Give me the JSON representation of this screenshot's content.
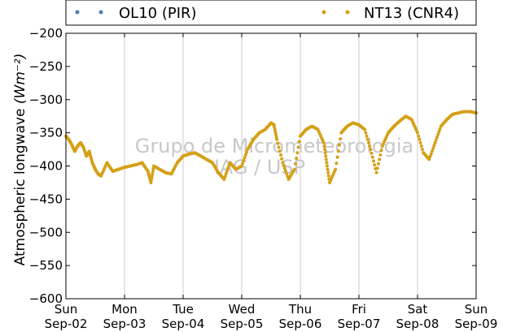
{
  "chart_data": {
    "type": "scatter",
    "ylabel": "Atmospheric longwave",
    "ylabel_units": "(Wm⁻²)",
    "ylim": [
      -600,
      -200
    ],
    "yticks": [
      -200,
      -250,
      -300,
      -350,
      -400,
      -450,
      -500,
      -550,
      -600
    ],
    "ytick_labels": [
      "−200",
      "−250",
      "−300",
      "−350",
      "−400",
      "−450",
      "−500",
      "−550",
      "−600"
    ],
    "xlim": [
      "2012-09-02",
      "2012-09-09"
    ],
    "xticks": [
      {
        "day": "Sun",
        "date": "Sep-02"
      },
      {
        "day": "Mon",
        "date": "Sep-03"
      },
      {
        "day": "Tue",
        "date": "Sep-04"
      },
      {
        "day": "Wed",
        "date": "Sep-05"
      },
      {
        "day": "Thu",
        "date": "Sep-06"
      },
      {
        "day": "Fri",
        "date": "Sep-07"
      },
      {
        "day": "Sat",
        "date": "Sep-08"
      },
      {
        "day": "Sun",
        "date": "Sep-09"
      }
    ],
    "grid": "vertical",
    "legend_position": "top",
    "series": [
      {
        "name": "OL10 (PIR)",
        "color": "#4a7fb0",
        "x": [],
        "y": []
      },
      {
        "name": "NT13 (CNR4)",
        "color": "#d4a017",
        "x": [
          0.0,
          0.05,
          0.1,
          0.15,
          0.2,
          0.25,
          0.3,
          0.35,
          0.4,
          0.45,
          0.5,
          0.55,
          0.6,
          0.7,
          0.8,
          0.9,
          1.0,
          1.1,
          1.2,
          1.3,
          1.4,
          1.45,
          1.5,
          1.6,
          1.7,
          1.8,
          1.9,
          2.0,
          2.1,
          2.2,
          2.3,
          2.4,
          2.5,
          2.6,
          2.7,
          2.8,
          2.9,
          3.0,
          3.1,
          3.2,
          3.3,
          3.4,
          3.5,
          3.55,
          3.6,
          3.7,
          3.8,
          3.9,
          4.0,
          4.1,
          4.2,
          4.3,
          4.4,
          4.45,
          4.5,
          4.6,
          4.7,
          4.8,
          4.9,
          5.0,
          5.1,
          5.2,
          5.3,
          5.4,
          5.5,
          5.6,
          5.7,
          5.8,
          5.9,
          6.0,
          6.1,
          6.2,
          6.3,
          6.4,
          6.5,
          6.6,
          6.7,
          6.8,
          6.9,
          7.0
        ],
        "y": [
          -355,
          -360,
          -368,
          -378,
          -370,
          -365,
          -372,
          -385,
          -378,
          -395,
          -405,
          -412,
          -415,
          -395,
          -408,
          -405,
          -402,
          -400,
          -398,
          -395,
          -408,
          -425,
          -400,
          -405,
          -410,
          -412,
          -395,
          -385,
          -382,
          -380,
          -385,
          -390,
          -395,
          -410,
          -420,
          -395,
          -405,
          -400,
          -375,
          -360,
          -350,
          -345,
          -335,
          -338,
          -360,
          -395,
          -420,
          -405,
          -355,
          -345,
          -340,
          -345,
          -365,
          -395,
          -425,
          -405,
          -350,
          -340,
          -335,
          -338,
          -345,
          -375,
          -410,
          -370,
          -350,
          -340,
          -332,
          -325,
          -330,
          -350,
          -380,
          -390,
          -365,
          -340,
          -330,
          -322,
          -320,
          -318,
          -318,
          -320
        ]
      }
    ],
    "annotations": [
      "Grupo de Micrometeorologia",
      "IAG / USP"
    ]
  }
}
